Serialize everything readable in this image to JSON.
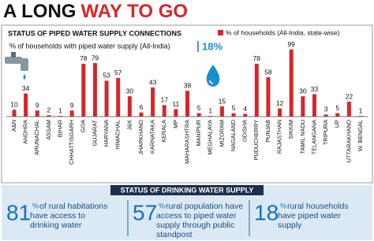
{
  "chart_data": {
    "type": "bar",
    "title_black": "A LONG",
    "title_red": "WAY TO GO",
    "subtitle": "STATUS OF PIPED WATER SUPPLY CONNECTIONS",
    "all_india_label": "% of households with piped water supply (All-India)",
    "all_india_value": 18,
    "all_india_value_label": "18%",
    "series": [
      {
        "name": "% of households (All-India, state-wise)",
        "color": "#d7262b",
        "values": [
          10,
          34,
          9,
          2,
          1,
          9,
          78,
          79,
          53,
          57,
          30,
          6,
          43,
          17,
          11,
          38,
          5,
          1,
          15,
          5,
          4,
          78,
          58,
          12,
          99,
          30,
          33,
          3,
          5,
          22,
          1
        ]
      }
    ],
    "categories": [
      "A&N",
      "ANDHRA",
      "ARUNACHAL",
      "ASSAM",
      "BIHAR",
      "CHHATTISGARH",
      "GOA",
      "GUJARAT",
      "HARYANA",
      "HIMACHAL",
      "J&K",
      "JHARKHAND",
      "KARNATAKA",
      "KERALA",
      "MP",
      "MAHARASHTRA",
      "MANIPUR",
      "MEGHALAYA",
      "MIZORAM",
      "NAGALAND",
      "ODISHA",
      "PUDUCHERRY",
      "PUNJAB",
      "RAJASTHAN",
      "SIKKIM",
      "TAMIL NADU",
      "TELANGANA",
      "TRIPURA",
      "UP",
      "UTTARAKHAND",
      "W. BENGAL"
    ]
  },
  "drinking_water": {
    "title": "STATUS OF DRINKING WATER SUPPLY",
    "items": [
      {
        "number": 81,
        "unit": "%",
        "text": "of rural habitations have access to drinking water"
      },
      {
        "number": 57,
        "unit": "%",
        "text": "rural population have access to piped water supply through public standpost"
      },
      {
        "number": 18,
        "unit": "%",
        "text": "rural households have piped water supply"
      }
    ]
  }
}
